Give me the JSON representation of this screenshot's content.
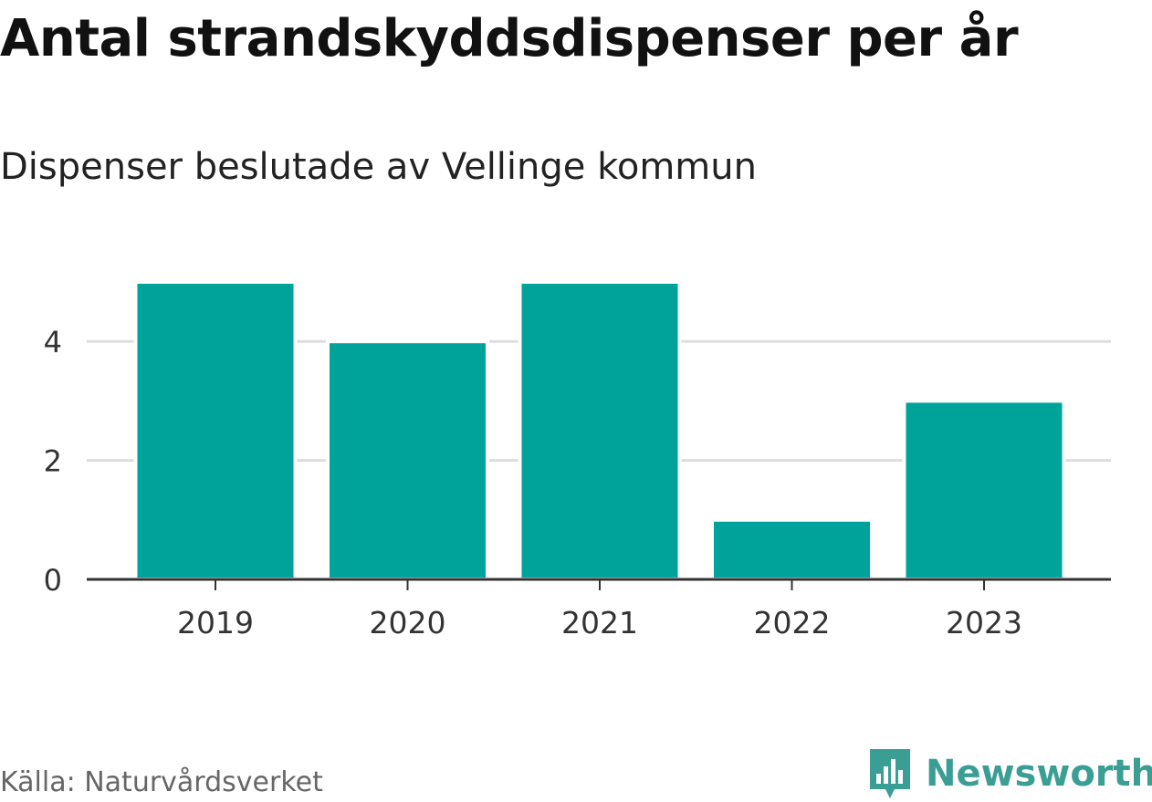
{
  "title": "Antal strandskyddsdispenser per år",
  "subtitle": "Dispenser beslutade av Vellinge kommun",
  "source": "Källa: Naturvårdsverket",
  "brand": "Newsworthy",
  "colors": {
    "bar": "#00a39a",
    "grid": "#dddddd",
    "axis": "#333333",
    "brand": "#3a9e95"
  },
  "chart_data": {
    "type": "bar",
    "categories": [
      "2019",
      "2020",
      "2021",
      "2022",
      "2023"
    ],
    "values": [
      5,
      4,
      5,
      1,
      3
    ],
    "yticks": [
      "0",
      "2",
      "4"
    ],
    "ylim": [
      0,
      5
    ],
    "title": "Antal strandskyddsdispenser per år",
    "subtitle": "Dispenser beslutade av Vellinge kommun",
    "xlabel": "",
    "ylabel": "",
    "grid": true
  }
}
